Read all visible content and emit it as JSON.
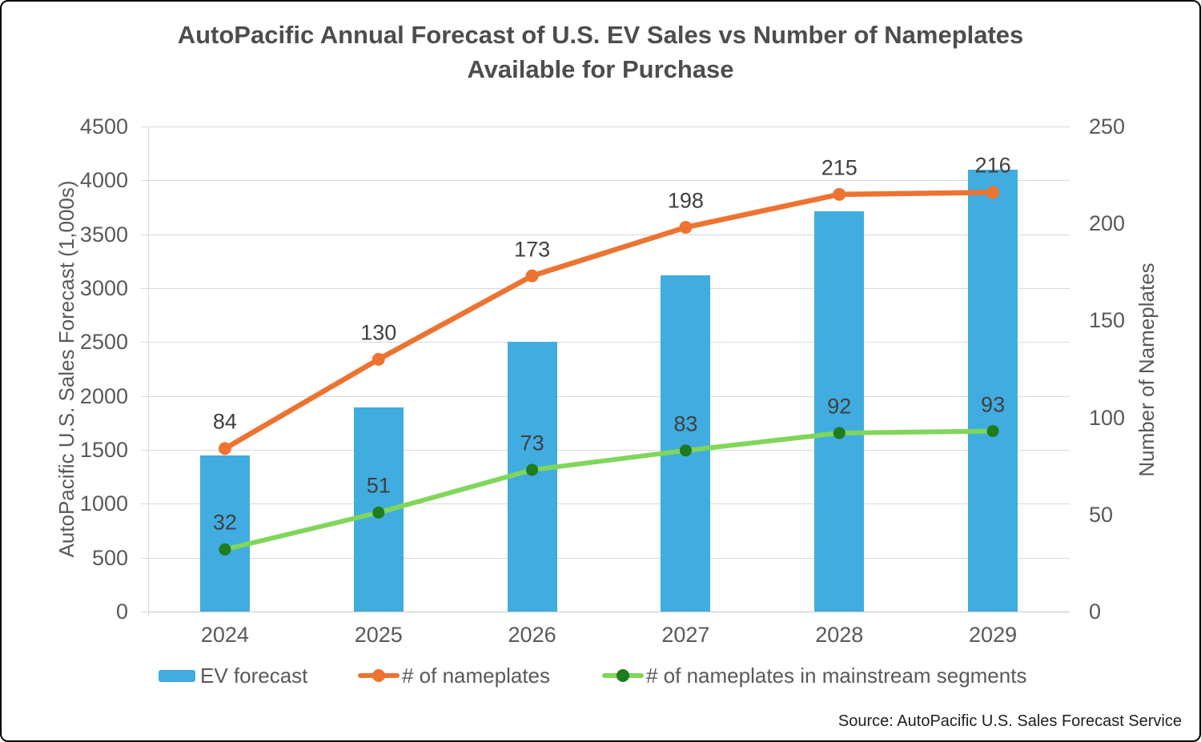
{
  "chart_data": {
    "type": "combo-bar-line",
    "title": "AutoPacific Annual Forecast of U.S. EV Sales vs Number of Nameplates Available for Purchase",
    "title_lines": [
      "AutoPacific Annual Forecast of U.S. EV Sales vs Number of Nameplates",
      "Available for Purchase"
    ],
    "categories": [
      "2024",
      "2025",
      "2026",
      "2027",
      "2028",
      "2029"
    ],
    "series": [
      {
        "name": "EV forecast",
        "type": "bar",
        "axis": "left",
        "color": "#41ACDF",
        "values": [
          1450,
          1890,
          2500,
          3120,
          3710,
          4100
        ],
        "data_labels": false
      },
      {
        "name": "# of nameplates",
        "type": "line",
        "axis": "right",
        "color": "#ED7331",
        "marker_color": "#ED7331",
        "values": [
          84,
          130,
          173,
          198,
          215,
          216
        ],
        "data_labels": true
      },
      {
        "name": "# of nameplates in mainstream segments",
        "type": "line",
        "axis": "right",
        "color": "#80D65A",
        "marker_color": "#1E7B1E",
        "values": [
          32,
          51,
          73,
          83,
          92,
          93
        ],
        "data_labels": true
      }
    ],
    "left_axis": {
      "title": "AutoPacific U.S. Sales Forecast (1,000s)",
      "min": 0,
      "max": 4500,
      "step": 500,
      "tick_labels": [
        "0",
        "500",
        "1000",
        "1500",
        "2000",
        "2500",
        "3000",
        "3500",
        "4000",
        "4500"
      ]
    },
    "right_axis": {
      "title": "Number of Nameplates",
      "min": 0,
      "max": 250,
      "step": 50,
      "tick_labels": [
        "0",
        "50",
        "100",
        "150",
        "200",
        "250"
      ]
    },
    "legend": {
      "position": "bottom",
      "entries": [
        "EV forecast",
        "# of nameplates",
        "# of nameplates in mainstream segments"
      ]
    },
    "grid": true,
    "grid_color": "#D9D9D9",
    "source": "Source: AutoPacific U.S. Sales Forecast Service",
    "text_colors": {
      "title": "#4D4D4D",
      "ticks": "#595959",
      "data_labels": "#404040",
      "source": "#1F1F1F"
    }
  }
}
